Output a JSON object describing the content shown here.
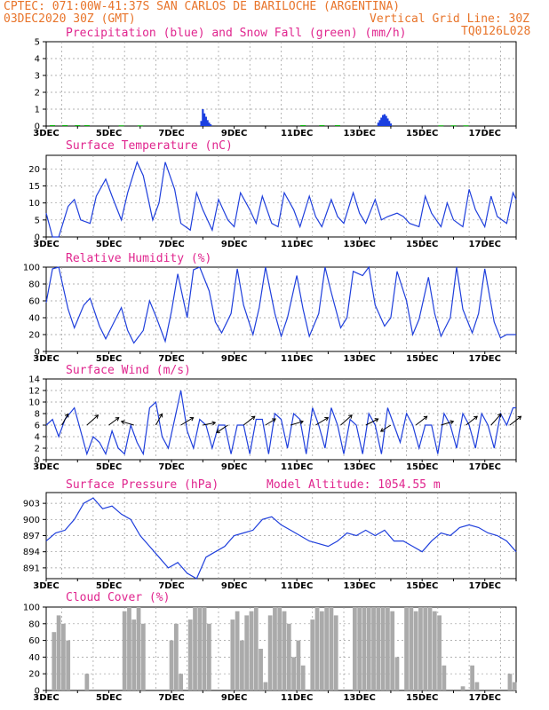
{
  "header": {
    "station_line": "CPTEC:  071:00W-41:37S  SAN CARLOS DE BARILOCHE (ARGENTINA)",
    "date_line": "03DEC2020 30Z (GMT)",
    "grid_line": "Vertical Grid Line: 30Z",
    "code": "TQ0126L028"
  },
  "colors": {
    "precip": "#1a3fe0",
    "snow": "#00b000",
    "line": "#1f3fdc",
    "cloud": "#aaaaaa",
    "title": "#e0258e",
    "header": "#e8742a"
  },
  "chart_data": [
    {
      "type": "bar",
      "title": "Precipitation (blue) and Snow Fall (green) (mm/h)",
      "ylim": [
        0,
        5
      ],
      "yticks": [
        0,
        1,
        2,
        3,
        4,
        5
      ],
      "xlim": [
        0,
        15
      ],
      "xticks": [
        "3DEC",
        "5DEC",
        "7DEC",
        "9DEC",
        "11DEC",
        "13DEC",
        "15DEC",
        "17DEC"
      ],
      "series": [
        {
          "name": "Precipitation",
          "x": [
            4.95,
            5.0,
            5.05,
            5.1,
            5.15,
            5.2,
            5.25,
            10.6,
            10.65,
            10.7,
            10.75,
            10.8,
            10.85,
            10.9,
            10.95,
            11.0
          ],
          "values": [
            0.3,
            1.0,
            0.75,
            0.55,
            0.35,
            0.2,
            0.1,
            0.2,
            0.35,
            0.5,
            0.65,
            0.7,
            0.6,
            0.45,
            0.3,
            0.15
          ]
        },
        {
          "name": "Snow Fall",
          "x": [
            0.2,
            0.6,
            1.0,
            1.3,
            2.4,
            3.0,
            8.2,
            8.8,
            9.3,
            12.6,
            13.0,
            13.4
          ],
          "values": [
            0.05,
            0.05,
            0.05,
            0.05,
            0.04,
            0.04,
            0.05,
            0.05,
            0.05,
            0.04,
            0.04,
            0.04
          ]
        }
      ]
    },
    {
      "type": "line",
      "title": "Surface Temperature (nC)",
      "ylim": [
        0,
        24
      ],
      "yticks": [
        0,
        5,
        10,
        15,
        20
      ],
      "xlim": [
        0,
        15
      ],
      "xticks": [
        "3DEC",
        "5DEC",
        "7DEC",
        "9DEC",
        "11DEC",
        "13DEC",
        "15DEC",
        "17DEC"
      ],
      "x": [
        0,
        0.2,
        0.4,
        0.7,
        0.9,
        1.1,
        1.4,
        1.6,
        1.9,
        2.1,
        2.4,
        2.6,
        2.9,
        3.1,
        3.4,
        3.6,
        3.8,
        4.1,
        4.3,
        4.6,
        4.8,
        5.0,
        5.3,
        5.5,
        5.8,
        6.0,
        6.2,
        6.5,
        6.7,
        6.9,
        7.2,
        7.4,
        7.6,
        7.9,
        8.1,
        8.4,
        8.6,
        8.8,
        9.1,
        9.3,
        9.5,
        9.8,
        10.0,
        10.2,
        10.5,
        10.7,
        10.9,
        11.2,
        11.4,
        11.6,
        11.9,
        12.1,
        12.3,
        12.6,
        12.8,
        13.0,
        13.3,
        13.5,
        13.7,
        14.0,
        14.2,
        14.4,
        14.7,
        14.9,
        15.0
      ],
      "values": [
        7,
        0,
        0,
        9,
        11,
        5,
        4,
        12,
        17,
        12,
        5,
        13,
        22,
        18,
        5,
        10,
        22,
        14,
        4,
        2,
        13,
        8,
        2,
        11,
        5,
        3,
        13,
        8,
        4,
        12,
        4,
        3,
        13,
        8,
        3,
        12,
        6,
        3,
        11,
        6,
        4,
        13,
        7,
        4,
        11,
        5,
        6,
        7,
        6,
        4,
        3,
        12,
        7,
        3,
        10,
        5,
        3,
        14,
        8,
        3,
        12,
        6,
        4,
        13,
        11
      ],
      "color": "#1f3fdc"
    },
    {
      "type": "line",
      "title": "Relative Humidity (%)",
      "ylim": [
        0,
        100
      ],
      "yticks": [
        0,
        20,
        40,
        60,
        80,
        100
      ],
      "xlim": [
        0,
        15
      ],
      "xticks": [
        "3DEC",
        "5DEC",
        "7DEC",
        "9DEC",
        "11DEC",
        "13DEC",
        "15DEC",
        "17DEC"
      ],
      "x": [
        0,
        0.2,
        0.4,
        0.7,
        0.9,
        1.2,
        1.4,
        1.7,
        1.9,
        2.1,
        2.4,
        2.6,
        2.8,
        3.1,
        3.3,
        3.5,
        3.8,
        4.0,
        4.2,
        4.5,
        4.7,
        4.9,
        5.2,
        5.4,
        5.6,
        5.9,
        6.1,
        6.3,
        6.6,
        6.8,
        7.0,
        7.3,
        7.5,
        7.7,
        8.0,
        8.2,
        8.4,
        8.7,
        8.9,
        9.1,
        9.4,
        9.6,
        9.8,
        10.1,
        10.3,
        10.5,
        10.8,
        11.0,
        11.2,
        11.5,
        11.7,
        11.9,
        12.2,
        12.4,
        12.6,
        12.9,
        13.1,
        13.3,
        13.6,
        13.8,
        14.0,
        14.3,
        14.5,
        14.7,
        15.0
      ],
      "values": [
        58,
        98,
        100,
        50,
        28,
        55,
        63,
        30,
        15,
        30,
        52,
        25,
        10,
        25,
        60,
        42,
        12,
        48,
        92,
        40,
        97,
        100,
        72,
        35,
        22,
        45,
        98,
        55,
        20,
        52,
        100,
        45,
        18,
        40,
        90,
        50,
        18,
        45,
        100,
        70,
        28,
        40,
        95,
        90,
        100,
        55,
        30,
        40,
        95,
        60,
        20,
        38,
        88,
        45,
        18,
        40,
        100,
        50,
        22,
        45,
        98,
        35,
        16,
        20,
        20
      ],
      "color": "#1f3fdc"
    },
    {
      "type": "line",
      "title": "Surface Wind (m/s)",
      "ylim": [
        0,
        14
      ],
      "yticks": [
        0,
        2,
        4,
        6,
        8,
        10,
        12,
        14
      ],
      "xlim": [
        0,
        15
      ],
      "xticks": [
        "3DEC",
        "5DEC",
        "7DEC",
        "9DEC",
        "11DEC",
        "13DEC",
        "15DEC",
        "17DEC"
      ],
      "x": [
        0,
        0.2,
        0.4,
        0.6,
        0.9,
        1.1,
        1.3,
        1.5,
        1.7,
        1.9,
        2.1,
        2.3,
        2.5,
        2.7,
        2.9,
        3.1,
        3.3,
        3.5,
        3.7,
        3.9,
        4.1,
        4.3,
        4.5,
        4.7,
        4.9,
        5.1,
        5.3,
        5.5,
        5.7,
        5.9,
        6.1,
        6.3,
        6.5,
        6.7,
        6.9,
        7.1,
        7.3,
        7.5,
        7.7,
        7.9,
        8.1,
        8.3,
        8.5,
        8.7,
        8.9,
        9.1,
        9.3,
        9.5,
        9.7,
        9.9,
        10.1,
        10.3,
        10.5,
        10.7,
        10.9,
        11.1,
        11.3,
        11.5,
        11.7,
        11.9,
        12.1,
        12.3,
        12.5,
        12.7,
        12.9,
        13.1,
        13.3,
        13.5,
        13.7,
        13.9,
        14.1,
        14.3,
        14.5,
        14.7,
        14.9,
        15.0
      ],
      "values": [
        6,
        7,
        4,
        7,
        9,
        5,
        1,
        4,
        3,
        1,
        5,
        2,
        1,
        6,
        3,
        1,
        9,
        10,
        4,
        2,
        7,
        12,
        5,
        2,
        7,
        6,
        2,
        6,
        6,
        1,
        6,
        6,
        1,
        7,
        7,
        1,
        8,
        7,
        2,
        8,
        7,
        1,
        9,
        6,
        2,
        9,
        6,
        1,
        7,
        6,
        1,
        8,
        6,
        1,
        9,
        6,
        3,
        8,
        6,
        2,
        6,
        6,
        1,
        8,
        6,
        2,
        8,
        6,
        2,
        8,
        6,
        2,
        8,
        6,
        9,
        9
      ],
      "color": "#1f3fdc",
      "wind_arrows": {
        "x": [
          0.5,
          1.3,
          2.0,
          2.8,
          3.5,
          4.3,
          5.0,
          5.8,
          6.3,
          7.0,
          7.8,
          8.6,
          9.4,
          10.2,
          11.0,
          11.8,
          12.6,
          13.4,
          14.2,
          14.8
        ],
        "u": [
          0.5,
          0.9,
          0.8,
          -1.0,
          0.5,
          1.0,
          1.0,
          -0.9,
          0.9,
          0.8,
          1.0,
          1.0,
          0.9,
          1.0,
          -0.8,
          0.9,
          1.0,
          0.9,
          0.8,
          0.9
        ],
        "v": [
          0.9,
          0.8,
          0.6,
          0.3,
          0.9,
          0.6,
          0.2,
          -0.6,
          0.7,
          0.5,
          0.3,
          0.6,
          0.8,
          0.5,
          -0.5,
          0.7,
          0.3,
          0.7,
          0.9,
          0.7
        ]
      }
    },
    {
      "type": "line",
      "title": "Surface Pressure (hPa)",
      "annotation": "Model Altitude: 1054.55 m",
      "ylim": [
        889,
        905
      ],
      "yticks": [
        891,
        894,
        897,
        900,
        903
      ],
      "xlim": [
        0,
        15
      ],
      "xticks": [
        "3DEC",
        "5DEC",
        "7DEC",
        "9DEC",
        "11DEC",
        "13DEC",
        "15DEC",
        "17DEC"
      ],
      "x": [
        0,
        0.3,
        0.6,
        0.9,
        1.2,
        1.5,
        1.8,
        2.1,
        2.4,
        2.7,
        3.0,
        3.3,
        3.6,
        3.9,
        4.2,
        4.5,
        4.8,
        5.1,
        5.4,
        5.7,
        6.0,
        6.3,
        6.6,
        6.9,
        7.2,
        7.5,
        7.8,
        8.1,
        8.4,
        8.7,
        9.0,
        9.3,
        9.6,
        9.9,
        10.2,
        10.5,
        10.8,
        11.1,
        11.4,
        11.7,
        12.0,
        12.3,
        12.6,
        12.9,
        13.2,
        13.5,
        13.8,
        14.1,
        14.4,
        14.7,
        15.0
      ],
      "values": [
        896,
        897.5,
        898,
        900,
        903,
        904,
        902,
        902.5,
        901,
        900,
        897,
        895,
        893,
        891,
        892,
        890,
        889,
        893,
        894,
        895,
        897,
        897.5,
        898,
        900,
        900.5,
        899,
        898,
        897,
        896,
        895.5,
        895,
        896,
        897.5,
        897,
        898,
        897,
        898,
        896,
        896,
        895,
        894,
        896,
        897.5,
        897,
        898.5,
        899,
        898.5,
        897.5,
        897,
        896,
        894
      ],
      "color": "#1f3fdc"
    },
    {
      "type": "bar",
      "title": "Cloud Cover (%)",
      "ylim": [
        0,
        100
      ],
      "yticks": [
        0,
        20,
        40,
        60,
        80,
        100
      ],
      "xlim": [
        0,
        15
      ],
      "xticks": [
        "3DEC",
        "5DEC",
        "7DEC",
        "9DEC",
        "11DEC",
        "13DEC",
        "15DEC",
        "17DEC"
      ],
      "x": [
        0.1,
        0.25,
        0.4,
        0.55,
        0.7,
        0.85,
        1.0,
        1.15,
        1.3,
        1.45,
        1.6,
        1.75,
        1.9,
        2.05,
        2.2,
        2.35,
        2.5,
        2.65,
        2.8,
        2.95,
        3.1,
        3.25,
        3.4,
        3.55,
        3.7,
        3.85,
        4.0,
        4.15,
        4.3,
        4.45,
        4.6,
        4.75,
        4.9,
        5.05,
        5.2,
        5.35,
        5.5,
        5.65,
        5.8,
        5.95,
        6.1,
        6.25,
        6.4,
        6.55,
        6.7,
        6.85,
        7.0,
        7.15,
        7.3,
        7.45,
        7.6,
        7.75,
        7.9,
        8.05,
        8.2,
        8.35,
        8.5,
        8.65,
        8.8,
        8.95,
        9.1,
        9.25,
        9.4,
        9.55,
        9.7,
        9.85,
        10.0,
        10.15,
        10.3,
        10.45,
        10.6,
        10.75,
        10.9,
        11.05,
        11.2,
        11.35,
        11.5,
        11.65,
        11.8,
        11.95,
        12.1,
        12.25,
        12.4,
        12.55,
        12.7,
        12.85,
        13.0,
        13.15,
        13.3,
        13.45,
        13.6,
        13.75,
        13.9,
        14.05,
        14.2,
        14.35,
        14.5,
        14.65,
        14.8,
        14.95
      ],
      "values": [
        0,
        70,
        90,
        80,
        60,
        0,
        0,
        0,
        20,
        0,
        0,
        0,
        0,
        0,
        0,
        0,
        95,
        100,
        85,
        100,
        80,
        0,
        0,
        0,
        0,
        0,
        60,
        80,
        20,
        0,
        85,
        100,
        100,
        100,
        80,
        0,
        0,
        0,
        0,
        85,
        95,
        60,
        90,
        95,
        100,
        50,
        10,
        90,
        100,
        100,
        95,
        80,
        40,
        60,
        30,
        0,
        85,
        100,
        95,
        100,
        100,
        90,
        0,
        0,
        0,
        100,
        100,
        100,
        100,
        100,
        100,
        100,
        100,
        95,
        40,
        0,
        100,
        100,
        95,
        100,
        100,
        100,
        95,
        90,
        30,
        0,
        0,
        0,
        5,
        0,
        30,
        10,
        0,
        0,
        0,
        0,
        0,
        0,
        20,
        10
      ],
      "color": "#aaaaaa"
    }
  ]
}
